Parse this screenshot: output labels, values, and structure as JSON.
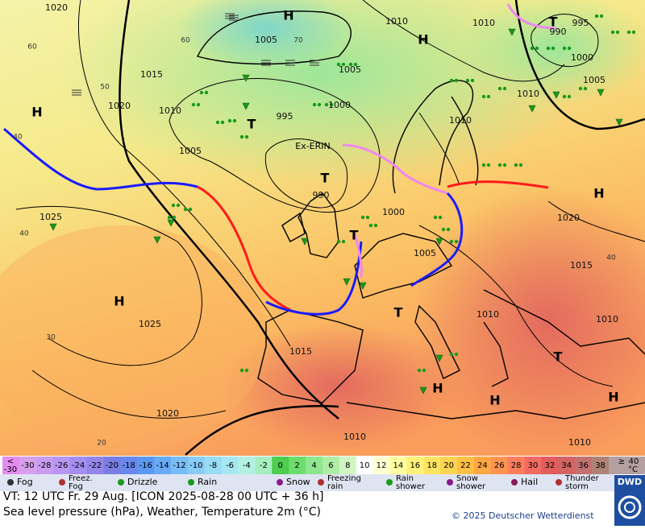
{
  "map": {
    "isobar_labels": [
      "1020",
      "1010",
      "1010",
      "995",
      "990",
      "1000",
      "1005",
      "1005",
      "1015",
      "1020",
      "1010",
      "995",
      "1000",
      "1010",
      "1005",
      "1010",
      "1005",
      "990",
      "1000",
      "1025",
      "1020",
      "1005",
      "1015",
      "1025",
      "1010",
      "1010",
      "1015",
      "1020",
      "1010",
      "1010"
    ],
    "pressure_centers": [
      "H",
      "H",
      "H",
      "T",
      "T",
      "T",
      "T",
      "T",
      "H",
      "H",
      "T",
      "H",
      "H",
      "H"
    ],
    "system_name": "Ex-ERIN",
    "isotherm_labels": [
      "60",
      "50",
      "40",
      "40",
      "30",
      "20",
      "60",
      "70",
      "40"
    ]
  },
  "legend": {
    "temperature_scale": {
      "low_symbol": "<",
      "low_value": -30,
      "low_color": "#e48cf0",
      "high_symbol": "≥",
      "high_value": 40,
      "high_color": "#b4a0a0",
      "unit": "°C",
      "items": [
        {
          "value": -30,
          "color": "#d8a0ec"
        },
        {
          "value": -28,
          "color": "#c99cf2"
        },
        {
          "value": -26,
          "color": "#b896f2"
        },
        {
          "value": -24,
          "color": "#a68ef0"
        },
        {
          "value": -22,
          "color": "#9286e8"
        },
        {
          "value": -20,
          "color": "#7a7ee2"
        },
        {
          "value": -18,
          "color": "#6888ee"
        },
        {
          "value": -16,
          "color": "#5c98f2"
        },
        {
          "value": -14,
          "color": "#68aaf6"
        },
        {
          "value": -12,
          "color": "#78bcf8"
        },
        {
          "value": -10,
          "color": "#88ccf8"
        },
        {
          "value": -8,
          "color": "#98dcf6"
        },
        {
          "value": -6,
          "color": "#a6e8f2"
        },
        {
          "value": -4,
          "color": "#b2f0e2"
        },
        {
          "value": -2,
          "color": "#a6eec0"
        },
        {
          "value": 0,
          "color": "#4ecc4e"
        },
        {
          "value": 2,
          "color": "#6edc6e"
        },
        {
          "value": 4,
          "color": "#8ee68e"
        },
        {
          "value": 6,
          "color": "#aeeea4"
        },
        {
          "value": 8,
          "color": "#d0f6c2"
        },
        {
          "value": 10,
          "color": "#ffffff"
        },
        {
          "value": 12,
          "color": "#ffffd2"
        },
        {
          "value": 14,
          "color": "#ffffa2"
        },
        {
          "value": 16,
          "color": "#fff278"
        },
        {
          "value": 18,
          "color": "#ffe462"
        },
        {
          "value": 20,
          "color": "#ffd452"
        },
        {
          "value": 22,
          "color": "#ffc044"
        },
        {
          "value": 24,
          "color": "#ffa842"
        },
        {
          "value": 26,
          "color": "#ff9450"
        },
        {
          "value": 28,
          "color": "#fc7e5e"
        },
        {
          "value": 30,
          "color": "#f26a62"
        },
        {
          "value": 32,
          "color": "#e25e5c"
        },
        {
          "value": 34,
          "color": "#d26464"
        },
        {
          "value": 36,
          "color": "#c27070"
        },
        {
          "value": 38,
          "color": "#b08274"
        }
      ]
    },
    "weather": [
      "Fog",
      "Freez.\nFog",
      "Drizzle",
      "Rain",
      "Snow",
      "Freezing\nrain",
      "Rain\nshower",
      "Snow\nshower",
      "Hail",
      "Thunder\nstorm"
    ]
  },
  "footer": {
    "valid_time": "VT: 12 UTC Fr.  29 Aug. [ICON 2025-08-28  00 UTC + 36 h]",
    "description": "Sea level pressure (hPa), Weather, Temperature 2m (°C)",
    "copyright": "© 2025 Deutscher Wetterdienst",
    "logo": "DWD"
  }
}
